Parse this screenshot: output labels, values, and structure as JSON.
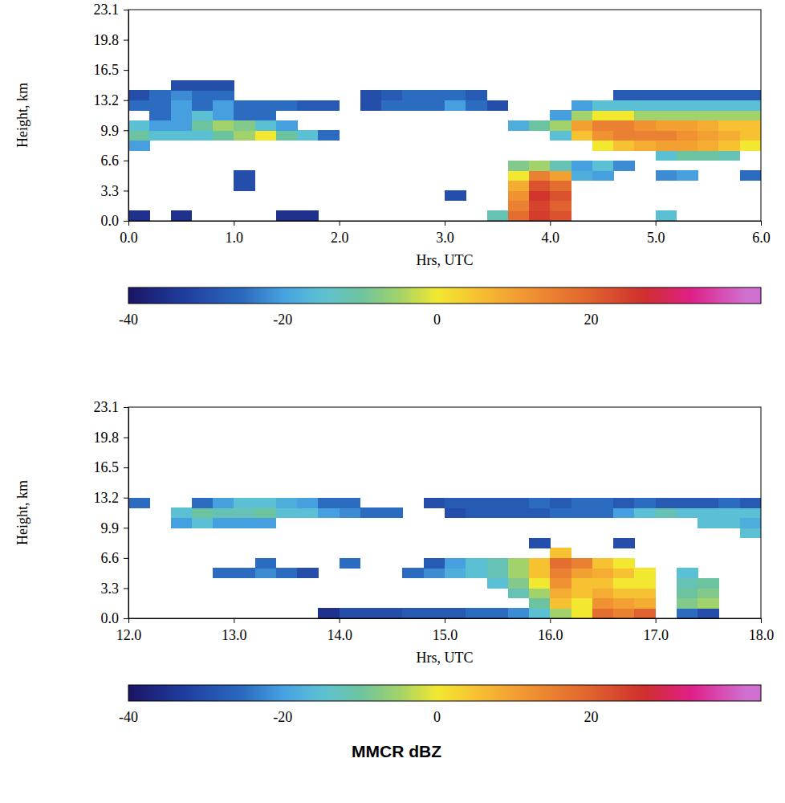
{
  "chart_data": [
    {
      "type": "heatmap",
      "x_label": "Hrs, UTC",
      "y_label": "Height, km",
      "xlim": [
        0,
        6
      ],
      "xticks": [
        {
          "value": 0,
          "label": "0.0"
        },
        {
          "value": 1,
          "label": "1.0"
        },
        {
          "value": 2,
          "label": "2.0"
        },
        {
          "value": 3,
          "label": "3.0"
        },
        {
          "value": 4,
          "label": "4.0"
        },
        {
          "value": 5,
          "label": "5.0"
        },
        {
          "value": 6,
          "label": "6.0"
        }
      ],
      "ylim": [
        0,
        23.1
      ],
      "yticks": [
        {
          "value": 0,
          "label": "0.0"
        },
        3.3,
        6.6,
        9.9,
        13.2,
        16.5,
        19.8,
        23.1
      ],
      "x_bins": [
        0,
        0.2,
        0.4,
        0.6,
        0.8,
        1.0,
        1.2,
        1.4,
        1.6,
        1.8,
        2.0,
        2.2,
        2.4,
        2.6,
        2.8,
        3.0,
        3.2,
        3.4,
        3.6,
        3.8,
        4.0,
        4.2,
        4.4,
        4.6,
        4.8,
        5.0,
        5.2,
        5.4,
        5.6,
        5.8,
        6.0
      ],
      "y_bins": [
        0,
        1.1,
        2.2,
        3.3,
        4.4,
        5.5,
        6.6,
        7.7,
        8.8,
        9.9,
        11,
        12.1,
        13.2,
        14.3,
        15.4
      ],
      "cells": [
        [
          -35,
          null,
          -35,
          null,
          null,
          null,
          null,
          -35,
          -35,
          null,
          null,
          null,
          null,
          null,
          null,
          null,
          null,
          -12,
          18,
          25,
          22,
          null,
          null,
          null,
          null,
          -15,
          null,
          null,
          null,
          null
        ],
        [
          null,
          null,
          null,
          null,
          null,
          null,
          null,
          null,
          null,
          null,
          null,
          null,
          null,
          null,
          null,
          null,
          null,
          null,
          15,
          24,
          20,
          null,
          null,
          null,
          null,
          null,
          null,
          null,
          null,
          null
        ],
        [
          null,
          null,
          null,
          null,
          null,
          null,
          null,
          null,
          null,
          null,
          null,
          null,
          null,
          null,
          null,
          -30,
          null,
          null,
          12,
          26,
          22,
          null,
          null,
          null,
          null,
          null,
          null,
          null,
          null,
          null
        ],
        [
          null,
          null,
          null,
          null,
          null,
          -30,
          null,
          null,
          null,
          null,
          null,
          null,
          null,
          null,
          null,
          null,
          null,
          null,
          8,
          22,
          18,
          null,
          null,
          null,
          null,
          null,
          null,
          null,
          null,
          null
        ],
        [
          null,
          null,
          null,
          null,
          null,
          -30,
          null,
          null,
          null,
          null,
          null,
          null,
          null,
          null,
          null,
          null,
          null,
          null,
          0,
          15,
          10,
          -18,
          -20,
          null,
          null,
          -22,
          -20,
          null,
          null,
          -25
        ],
        [
          null,
          null,
          null,
          null,
          null,
          null,
          null,
          null,
          null,
          null,
          null,
          null,
          null,
          null,
          null,
          null,
          null,
          null,
          -8,
          -5,
          -12,
          -20,
          -15,
          -22,
          null,
          null,
          null,
          null,
          null,
          null
        ],
        [
          null,
          null,
          null,
          null,
          null,
          null,
          null,
          null,
          null,
          null,
          null,
          null,
          null,
          null,
          null,
          null,
          null,
          null,
          null,
          null,
          null,
          null,
          null,
          null,
          null,
          -15,
          -10,
          -10,
          -12,
          null
        ],
        [
          -20,
          null,
          null,
          null,
          null,
          null,
          null,
          null,
          null,
          null,
          null,
          null,
          null,
          null,
          null,
          null,
          null,
          null,
          null,
          null,
          null,
          null,
          0,
          5,
          8,
          10,
          10,
          8,
          5,
          0
        ],
        [
          -10,
          -15,
          -15,
          -15,
          -10,
          -5,
          0,
          -10,
          -15,
          -25,
          null,
          null,
          null,
          null,
          null,
          null,
          null,
          null,
          null,
          null,
          -15,
          5,
          12,
          15,
          15,
          15,
          12,
          10,
          8,
          5
        ],
        [
          -15,
          -20,
          -20,
          -10,
          -5,
          -8,
          -15,
          -20,
          null,
          null,
          null,
          null,
          null,
          null,
          null,
          null,
          null,
          null,
          -18,
          -10,
          -5,
          10,
          15,
          15,
          12,
          10,
          10,
          8,
          5,
          5
        ],
        [
          null,
          -25,
          -20,
          -15,
          -20,
          -25,
          -25,
          null,
          null,
          null,
          null,
          null,
          null,
          null,
          null,
          null,
          null,
          null,
          null,
          null,
          -20,
          -5,
          0,
          0,
          -5,
          -5,
          -5,
          -5,
          -5,
          -5
        ],
        [
          -25,
          -25,
          -20,
          -25,
          -20,
          -25,
          -25,
          -25,
          -28,
          -28,
          null,
          -30,
          -25,
          -25,
          -25,
          -20,
          -25,
          -30,
          null,
          null,
          null,
          -20,
          -15,
          -15,
          -15,
          -15,
          -15,
          -15,
          -15,
          -15
        ],
        [
          -30,
          -25,
          -22,
          -25,
          -25,
          null,
          null,
          null,
          null,
          null,
          null,
          -30,
          -28,
          -25,
          -25,
          -25,
          -28,
          null,
          null,
          null,
          null,
          null,
          null,
          -28,
          -28,
          -28,
          -28,
          -28,
          -28,
          -28
        ],
        [
          null,
          null,
          -30,
          -30,
          -30,
          null,
          null,
          null,
          null,
          null,
          null,
          null,
          null,
          null,
          null,
          null,
          null,
          null,
          null,
          null,
          null,
          null,
          null,
          null,
          null,
          null,
          null,
          null,
          null,
          null
        ]
      ],
      "colorbar": {
        "range": [
          -40,
          42
        ],
        "ticks": [
          -40,
          -20,
          0,
          20
        ]
      }
    },
    {
      "type": "heatmap",
      "x_label": "Hrs, UTC",
      "y_label": "Height, km",
      "xlim": [
        12,
        18
      ],
      "xticks": [
        {
          "value": 12,
          "label": "12.0"
        },
        {
          "value": 13,
          "label": "13.0"
        },
        {
          "value": 14,
          "label": "14.0"
        },
        {
          "value": 15,
          "label": "15.0"
        },
        {
          "value": 16,
          "label": "16.0"
        },
        {
          "value": 17,
          "label": "17.0"
        },
        {
          "value": 18,
          "label": "18.0"
        }
      ],
      "ylim": [
        0,
        23.1
      ],
      "yticks": [
        {
          "value": 0,
          "label": "0.0"
        },
        3.3,
        6.6,
        9.9,
        13.2,
        16.5,
        19.8,
        23.1
      ],
      "x_bins": [
        12.0,
        12.2,
        12.4,
        12.6,
        12.8,
        13.0,
        13.2,
        13.4,
        13.6,
        13.8,
        14.0,
        14.2,
        14.4,
        14.6,
        14.8,
        15.0,
        15.2,
        15.4,
        15.6,
        15.8,
        16.0,
        16.2,
        16.4,
        16.6,
        16.8,
        17.0,
        17.2,
        17.4,
        17.6,
        17.8,
        18.0
      ],
      "y_bins": [
        0,
        1.1,
        2.2,
        3.3,
        4.4,
        5.5,
        6.6,
        7.7,
        8.8,
        9.9,
        11,
        12.1,
        13.2
      ],
      "cells": [
        [
          null,
          null,
          null,
          null,
          null,
          null,
          null,
          null,
          null,
          -35,
          -30,
          -30,
          -30,
          -28,
          -28,
          -28,
          -25,
          -25,
          -22,
          -15,
          -5,
          0,
          18,
          15,
          20,
          null,
          -25,
          -30,
          null,
          null
        ],
        [
          null,
          null,
          null,
          null,
          null,
          null,
          null,
          null,
          null,
          null,
          null,
          null,
          null,
          null,
          null,
          null,
          null,
          null,
          null,
          -10,
          5,
          0,
          12,
          10,
          8,
          null,
          -8,
          -5,
          null,
          null
        ],
        [
          null,
          null,
          null,
          null,
          null,
          null,
          null,
          null,
          null,
          null,
          null,
          null,
          null,
          null,
          null,
          null,
          null,
          null,
          -12,
          -5,
          8,
          5,
          8,
          5,
          5,
          null,
          -10,
          -8,
          null,
          null
        ],
        [
          null,
          null,
          null,
          null,
          null,
          null,
          null,
          null,
          null,
          null,
          null,
          null,
          null,
          null,
          null,
          null,
          null,
          -15,
          -8,
          0,
          12,
          5,
          5,
          0,
          0,
          null,
          -12,
          -10,
          null,
          null
        ],
        [
          null,
          null,
          null,
          null,
          -25,
          -25,
          -22,
          -25,
          -30,
          null,
          null,
          null,
          null,
          -25,
          -22,
          -18,
          -15,
          -12,
          -5,
          5,
          15,
          10,
          8,
          5,
          0,
          null,
          -15,
          null,
          null,
          null
        ],
        [
          null,
          null,
          null,
          null,
          null,
          null,
          -25,
          null,
          null,
          null,
          -25,
          null,
          null,
          null,
          -28,
          -20,
          -15,
          -12,
          -5,
          5,
          18,
          15,
          5,
          0,
          null,
          null,
          null,
          null,
          null,
          null
        ],
        [
          null,
          null,
          null,
          null,
          null,
          null,
          null,
          null,
          null,
          null,
          null,
          null,
          null,
          null,
          null,
          null,
          null,
          null,
          null,
          null,
          5,
          null,
          null,
          null,
          null,
          null,
          null,
          null,
          null,
          null
        ],
        [
          null,
          null,
          null,
          null,
          null,
          null,
          null,
          null,
          null,
          null,
          null,
          null,
          null,
          null,
          null,
          null,
          null,
          null,
          null,
          -30,
          null,
          null,
          null,
          -30,
          null,
          null,
          null,
          null,
          null,
          null
        ],
        [
          null,
          null,
          null,
          null,
          null,
          null,
          null,
          null,
          null,
          null,
          null,
          null,
          null,
          null,
          null,
          null,
          null,
          null,
          null,
          null,
          null,
          null,
          null,
          null,
          null,
          null,
          null,
          null,
          null,
          -15
        ],
        [
          null,
          null,
          -20,
          -15,
          -20,
          -20,
          -20,
          null,
          null,
          null,
          null,
          null,
          null,
          null,
          null,
          null,
          null,
          null,
          null,
          null,
          null,
          null,
          null,
          null,
          null,
          null,
          null,
          -15,
          -15,
          -18
        ],
        [
          null,
          null,
          -15,
          -10,
          -12,
          -12,
          -10,
          -15,
          -15,
          -20,
          -22,
          -25,
          -25,
          null,
          null,
          -30,
          -28,
          -28,
          -28,
          -28,
          -25,
          -25,
          -25,
          -20,
          -15,
          -12,
          -15,
          -15,
          -15,
          -15
        ],
        [
          -25,
          null,
          null,
          -25,
          -20,
          -15,
          -15,
          -18,
          -20,
          -25,
          -25,
          null,
          null,
          null,
          -30,
          -28,
          -28,
          -28,
          -28,
          -25,
          -28,
          -25,
          -25,
          -28,
          -25,
          -28,
          -28,
          -28,
          -25,
          -28
        ]
      ],
      "colorbar": {
        "label": "MMCR dBZ",
        "range": [
          -40,
          42
        ],
        "ticks": [
          -40,
          -20,
          0,
          20
        ]
      }
    }
  ]
}
